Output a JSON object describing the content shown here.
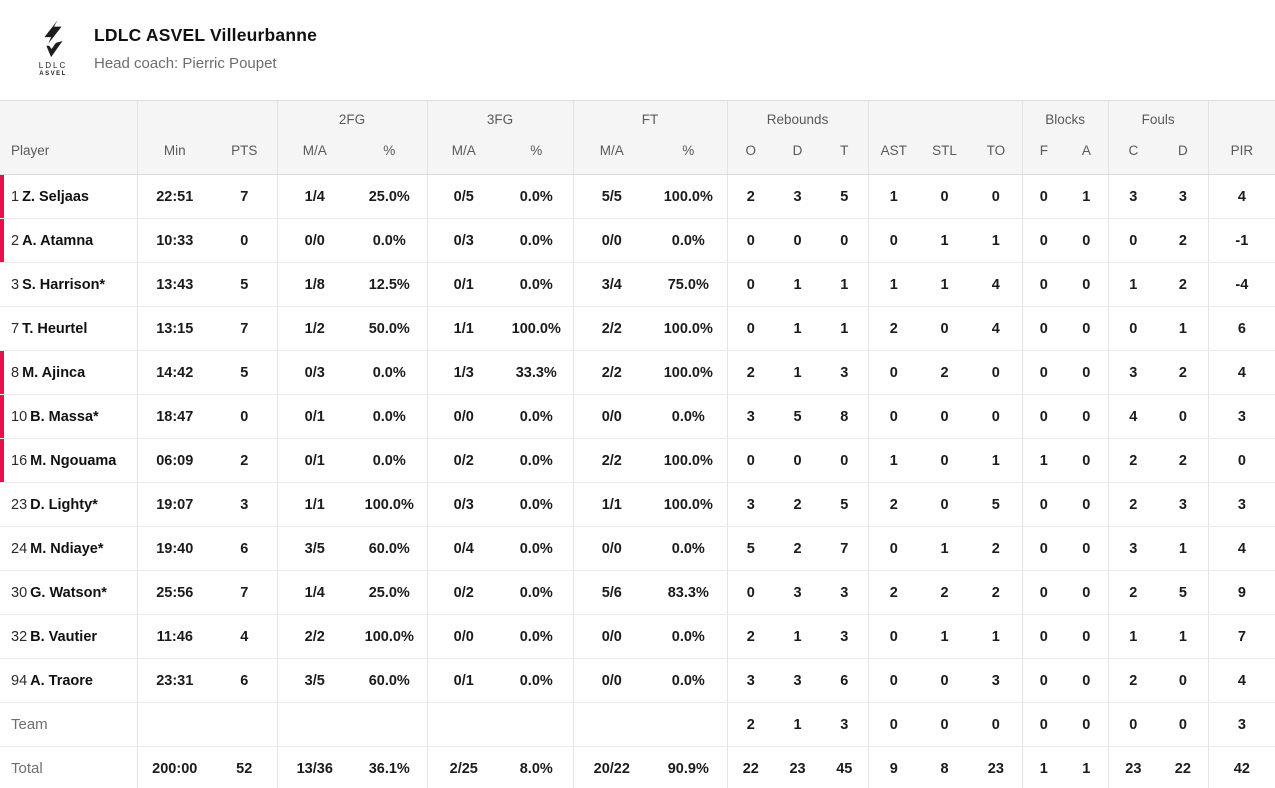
{
  "colors": {
    "accent": "#e5114d",
    "header_background": "#f5f5f5",
    "logo_color": "#1d1d1b"
  },
  "team": {
    "name": "LDLC ASVEL Villeurbanne",
    "coach": "Head coach: Pierric Poupet",
    "logo_line1": "LDLC",
    "logo_line2": "ASVEL"
  },
  "table": {
    "groups": [
      {
        "label": "2FG"
      },
      {
        "label": "3FG"
      },
      {
        "label": "FT"
      },
      {
        "label": "Rebounds"
      },
      {
        "label": "Blocks"
      },
      {
        "label": "Fouls"
      }
    ],
    "columns": [
      "Player",
      "Min",
      "PTS",
      "M/A",
      "%",
      "M/A",
      "%",
      "M/A",
      "%",
      "O",
      "D",
      "T",
      "AST",
      "STL",
      "TO",
      "F",
      "A",
      "C",
      "D",
      "PIR"
    ],
    "rows": [
      {
        "number": "1",
        "name": "Z. Seljaas",
        "on_court": true,
        "values": [
          "22:51",
          "7",
          "1/4",
          "25.0%",
          "0/5",
          "0.0%",
          "5/5",
          "100.0%",
          "2",
          "3",
          "5",
          "1",
          "0",
          "0",
          "0",
          "1",
          "3",
          "3",
          "4"
        ]
      },
      {
        "number": "2",
        "name": "A. Atamna",
        "on_court": true,
        "values": [
          "10:33",
          "0",
          "0/0",
          "0.0%",
          "0/3",
          "0.0%",
          "0/0",
          "0.0%",
          "0",
          "0",
          "0",
          "0",
          "1",
          "1",
          "0",
          "0",
          "0",
          "2",
          "-1"
        ]
      },
      {
        "number": "3",
        "name": "S. Harrison*",
        "on_court": false,
        "values": [
          "13:43",
          "5",
          "1/8",
          "12.5%",
          "0/1",
          "0.0%",
          "3/4",
          "75.0%",
          "0",
          "1",
          "1",
          "1",
          "1",
          "4",
          "0",
          "0",
          "1",
          "2",
          "-4"
        ]
      },
      {
        "number": "7",
        "name": "T. Heurtel",
        "on_court": false,
        "values": [
          "13:15",
          "7",
          "1/2",
          "50.0%",
          "1/1",
          "100.0%",
          "2/2",
          "100.0%",
          "0",
          "1",
          "1",
          "2",
          "0",
          "4",
          "0",
          "0",
          "0",
          "1",
          "6"
        ]
      },
      {
        "number": "8",
        "name": "M. Ajinca",
        "on_court": true,
        "values": [
          "14:42",
          "5",
          "0/3",
          "0.0%",
          "1/3",
          "33.3%",
          "2/2",
          "100.0%",
          "2",
          "1",
          "3",
          "0",
          "2",
          "0",
          "0",
          "0",
          "3",
          "2",
          "4"
        ]
      },
      {
        "number": "10",
        "name": "B. Massa*",
        "on_court": true,
        "values": [
          "18:47",
          "0",
          "0/1",
          "0.0%",
          "0/0",
          "0.0%",
          "0/0",
          "0.0%",
          "3",
          "5",
          "8",
          "0",
          "0",
          "0",
          "0",
          "0",
          "4",
          "0",
          "3"
        ]
      },
      {
        "number": "16",
        "name": "M. Ngouama",
        "on_court": true,
        "values": [
          "06:09",
          "2",
          "0/1",
          "0.0%",
          "0/2",
          "0.0%",
          "2/2",
          "100.0%",
          "0",
          "0",
          "0",
          "1",
          "0",
          "1",
          "1",
          "0",
          "2",
          "2",
          "0"
        ]
      },
      {
        "number": "23",
        "name": "D. Lighty*",
        "on_court": false,
        "values": [
          "19:07",
          "3",
          "1/1",
          "100.0%",
          "0/3",
          "0.0%",
          "1/1",
          "100.0%",
          "3",
          "2",
          "5",
          "2",
          "0",
          "5",
          "0",
          "0",
          "2",
          "3",
          "3"
        ]
      },
      {
        "number": "24",
        "name": "M. Ndiaye*",
        "on_court": false,
        "values": [
          "19:40",
          "6",
          "3/5",
          "60.0%",
          "0/4",
          "0.0%",
          "0/0",
          "0.0%",
          "5",
          "2",
          "7",
          "0",
          "1",
          "2",
          "0",
          "0",
          "3",
          "1",
          "4"
        ]
      },
      {
        "number": "30",
        "name": "G. Watson*",
        "on_court": false,
        "values": [
          "25:56",
          "7",
          "1/4",
          "25.0%",
          "0/2",
          "0.0%",
          "5/6",
          "83.3%",
          "0",
          "3",
          "3",
          "2",
          "2",
          "2",
          "0",
          "0",
          "2",
          "5",
          "9"
        ]
      },
      {
        "number": "32",
        "name": "B. Vautier",
        "on_court": false,
        "values": [
          "11:46",
          "4",
          "2/2",
          "100.0%",
          "0/0",
          "0.0%",
          "0/0",
          "0.0%",
          "2",
          "1",
          "3",
          "0",
          "1",
          "1",
          "0",
          "0",
          "1",
          "1",
          "7"
        ]
      },
      {
        "number": "94",
        "name": "A. Traore",
        "on_court": false,
        "values": [
          "23:31",
          "6",
          "3/5",
          "60.0%",
          "0/1",
          "0.0%",
          "0/0",
          "0.0%",
          "3",
          "3",
          "6",
          "0",
          "0",
          "3",
          "0",
          "0",
          "2",
          "0",
          "4"
        ]
      },
      {
        "number": "",
        "name": "Team",
        "type": "team",
        "values": [
          "",
          "",
          "",
          "",
          "",
          "",
          "",
          "",
          "2",
          "1",
          "3",
          "0",
          "0",
          "0",
          "0",
          "0",
          "0",
          "0",
          "3"
        ]
      },
      {
        "number": "",
        "name": "Total",
        "type": "total",
        "values": [
          "200:00",
          "52",
          "13/36",
          "36.1%",
          "2/25",
          "8.0%",
          "20/22",
          "90.9%",
          "22",
          "23",
          "45",
          "9",
          "8",
          "23",
          "1",
          "1",
          "23",
          "22",
          "42"
        ]
      }
    ]
  }
}
